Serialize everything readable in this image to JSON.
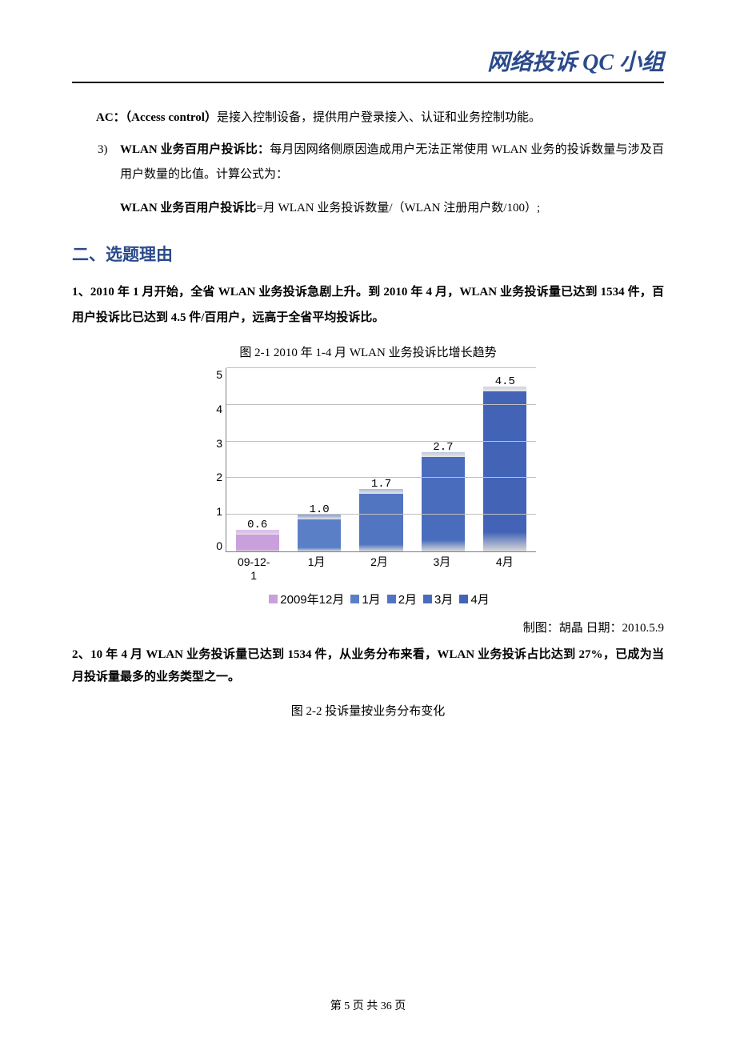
{
  "header": {
    "title": "网络投诉 QC 小组"
  },
  "p1_prefix": "AC：（Access control）",
  "p1_rest": "是接入控制设备，提供用户登录接入、认证和业务控制功能。",
  "li3_num": "3)",
  "li3_label": "WLAN 业务百用户投诉比：",
  "li3_text": "每月因网络侧原因造成用户无法正常使用 WLAN 业务的投诉数量与涉及百用户数量的比值。计算公式为：",
  "li3_formula_b": "WLAN 业务百用户投诉比",
  "li3_formula_r": "=月 WLAN 业务投诉数量/（WLAN 注册用户数/100）;",
  "h2": "二、选题理由",
  "para2_a": "1、2010 年 1 月开始，全省 WLAN 业务投诉急剧上升。到 2010 年 4 月，WLAN 业务投诉量已达到 1534 件，百用户投诉比已达到 4.5 件/百用户，远高于全省平均投诉比。",
  "fig21_caption": "图 2-1   2010 年 1-4 月 WLAN 业务投诉比增长趋势",
  "chart": {
    "type": "bar",
    "categories": [
      "09-12-1",
      "1月",
      "2月",
      "3月",
      "4月"
    ],
    "cat_lines": [
      [
        "09-12-",
        "1"
      ],
      [
        "1月"
      ],
      [
        "2月"
      ],
      [
        "3月"
      ],
      [
        "4月"
      ]
    ],
    "values": [
      0.6,
      1.0,
      1.7,
      2.7,
      4.5
    ],
    "bar_colors": [
      "#c9a0dc",
      "#5b7fc7",
      "#5275c2",
      "#4a6cbc",
      "#4364b6"
    ],
    "legend_labels": [
      "2009年12月",
      "1月",
      "2月",
      "3月",
      "4月"
    ],
    "legend_colors": [
      "#c9a0dc",
      "#5b7fc7",
      "#5275c2",
      "#4a6cbc",
      "#4364b6"
    ],
    "ymax": 5,
    "ytick_step": 1,
    "yticks": [
      "5",
      "4",
      "3",
      "2",
      "1",
      "0"
    ],
    "grid_color": "#c0c0c0",
    "axis_color": "#808080",
    "label_font": "Courier New",
    "label_fontsize": 14,
    "bar_width_pct": 70,
    "background_color": "#ffffff"
  },
  "credit": "制图：胡晶   日期：2010.5.9",
  "para3_a": "2、10 年 4 月 WLAN 业务投诉量已达到 1534 件，从业务分布来看，WLAN 业务投诉占比达到 27%，已成为当月投诉量最多的业务类型之一。",
  "fig22_caption": "图 2-2   投诉量按业务分布变化",
  "footer": "第 5 页  共  36 页"
}
